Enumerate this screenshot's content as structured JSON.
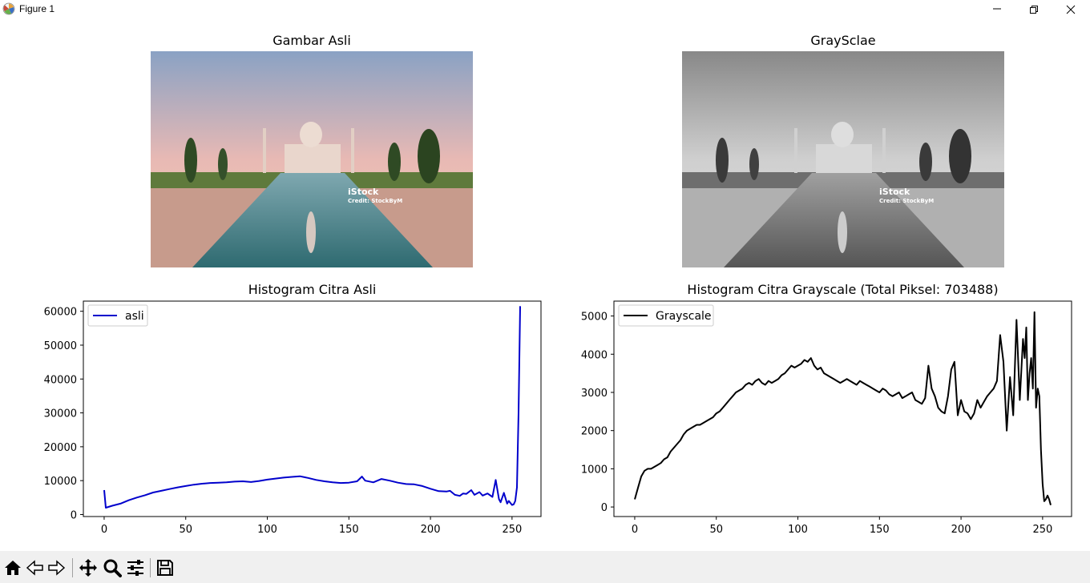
{
  "window": {
    "title": "Figure 1",
    "icon": "matplotlib-icon",
    "controls": [
      "minimize-icon",
      "restore-icon",
      "close-icon"
    ]
  },
  "figure": {
    "images": [
      {
        "title": "Gambar Asli",
        "mode": "color",
        "watermark": "iStock",
        "credit": "Credit: StockByM"
      },
      {
        "title": "GraySclae",
        "mode": "grayscale",
        "watermark": "iStock",
        "credit": "Credit: StockByM"
      }
    ]
  },
  "chart_data": [
    {
      "type": "line",
      "title": "Histogram Citra Asli",
      "xlabel": "",
      "ylabel": "",
      "xlim": [
        -12.75,
        267.75
      ],
      "ylim": [
        -600,
        63000
      ],
      "xticks": [
        0,
        50,
        100,
        150,
        200,
        250
      ],
      "yticks": [
        0,
        10000,
        20000,
        30000,
        40000,
        50000,
        60000
      ],
      "legend": "top-left",
      "series": [
        {
          "name": "asli",
          "color": "#0000cc",
          "x": [
            0,
            1,
            5,
            10,
            15,
            20,
            25,
            30,
            35,
            40,
            45,
            50,
            55,
            60,
            65,
            70,
            75,
            80,
            85,
            90,
            95,
            100,
            105,
            110,
            115,
            120,
            125,
            130,
            135,
            140,
            145,
            150,
            155,
            158,
            160,
            165,
            170,
            175,
            180,
            185,
            190,
            195,
            200,
            205,
            210,
            212,
            215,
            218,
            220,
            222,
            225,
            227,
            230,
            232,
            235,
            238,
            240,
            242,
            243,
            245,
            247,
            248,
            250,
            251,
            252,
            253,
            254,
            255
          ],
          "values": [
            7200,
            2000,
            2600,
            3200,
            4200,
            5000,
            5700,
            6500,
            7000,
            7500,
            8000,
            8400,
            8800,
            9100,
            9300,
            9400,
            9500,
            9700,
            9800,
            9600,
            9900,
            10300,
            10600,
            10900,
            11100,
            11300,
            10800,
            10200,
            9800,
            9500,
            9300,
            9400,
            9800,
            11200,
            10000,
            9500,
            10500,
            10000,
            9400,
            9000,
            8900,
            8400,
            7600,
            6900,
            6800,
            7000,
            5800,
            5500,
            6200,
            6100,
            7200,
            5800,
            6600,
            5600,
            6200,
            5200,
            10200,
            4500,
            3600,
            6400,
            3200,
            4000,
            2800,
            3000,
            4000,
            8000,
            30000,
            61500
          ]
        }
      ]
    },
    {
      "type": "line",
      "title": "Histogram Citra Grayscale (Total Piksel: 703488)",
      "xlabel": "",
      "ylabel": "",
      "xlim": [
        -12.75,
        267.75
      ],
      "ylim": [
        -250,
        5390
      ],
      "xticks": [
        0,
        50,
        100,
        150,
        200,
        250
      ],
      "yticks": [
        0,
        1000,
        2000,
        3000,
        4000,
        5000
      ],
      "legend": "top-left",
      "series": [
        {
          "name": "Grayscale",
          "color": "#000000",
          "x": [
            0,
            2,
            4,
            6,
            8,
            10,
            12,
            14,
            16,
            18,
            20,
            22,
            24,
            26,
            28,
            30,
            32,
            34,
            36,
            38,
            40,
            42,
            44,
            46,
            48,
            50,
            52,
            54,
            56,
            58,
            60,
            62,
            64,
            66,
            68,
            70,
            72,
            74,
            76,
            78,
            80,
            82,
            84,
            86,
            88,
            90,
            92,
            94,
            96,
            98,
            100,
            102,
            104,
            106,
            108,
            110,
            112,
            114,
            116,
            118,
            120,
            122,
            124,
            126,
            128,
            130,
            132,
            134,
            136,
            138,
            140,
            142,
            144,
            146,
            148,
            150,
            152,
            154,
            156,
            158,
            160,
            162,
            164,
            166,
            168,
            170,
            172,
            174,
            176,
            178,
            180,
            182,
            184,
            186,
            188,
            190,
            192,
            194,
            196,
            198,
            200,
            202,
            204,
            206,
            208,
            210,
            212,
            214,
            216,
            218,
            220,
            222,
            224,
            226,
            228,
            230,
            232,
            234,
            236,
            238,
            239,
            240,
            241,
            242,
            243,
            244,
            245,
            246,
            247,
            248,
            249,
            250,
            251,
            252,
            253,
            254,
            255
          ],
          "values": [
            200,
            500,
            800,
            950,
            1000,
            1000,
            1050,
            1100,
            1150,
            1250,
            1300,
            1450,
            1550,
            1650,
            1750,
            1900,
            2000,
            2050,
            2100,
            2150,
            2150,
            2200,
            2250,
            2300,
            2350,
            2450,
            2500,
            2600,
            2700,
            2800,
            2900,
            3000,
            3050,
            3100,
            3200,
            3250,
            3200,
            3300,
            3350,
            3250,
            3200,
            3300,
            3250,
            3300,
            3350,
            3450,
            3500,
            3600,
            3700,
            3650,
            3700,
            3750,
            3850,
            3800,
            3900,
            3700,
            3600,
            3650,
            3500,
            3450,
            3400,
            3350,
            3300,
            3250,
            3300,
            3350,
            3300,
            3250,
            3200,
            3300,
            3250,
            3200,
            3150,
            3100,
            3050,
            3000,
            3100,
            3050,
            2950,
            2900,
            2950,
            3000,
            2850,
            2900,
            2950,
            3000,
            2800,
            2750,
            2700,
            2850,
            3700,
            3100,
            2900,
            2600,
            2500,
            2450,
            2900,
            3600,
            3800,
            2400,
            2800,
            2500,
            2450,
            2300,
            2450,
            2800,
            2600,
            2750,
            2900,
            3000,
            3100,
            3300,
            4500,
            3800,
            2000,
            3400,
            2400,
            4900,
            2800,
            4400,
            3900,
            4700,
            2800,
            3500,
            3900,
            3100,
            5100,
            2600,
            3100,
            2900,
            1500,
            600,
            150,
            200,
            300,
            200,
            50
          ]
        }
      ]
    }
  ],
  "toolbar": {
    "items": [
      {
        "name": "home-icon",
        "label": "Home"
      },
      {
        "name": "back-arrow-icon",
        "label": "Back"
      },
      {
        "name": "forward-arrow-icon",
        "label": "Forward"
      },
      {
        "name": "pan-icon",
        "label": "Pan"
      },
      {
        "name": "zoom-icon",
        "label": "Zoom"
      },
      {
        "name": "configure-subplots-icon",
        "label": "Subplots"
      },
      {
        "name": "save-icon",
        "label": "Save"
      }
    ]
  }
}
